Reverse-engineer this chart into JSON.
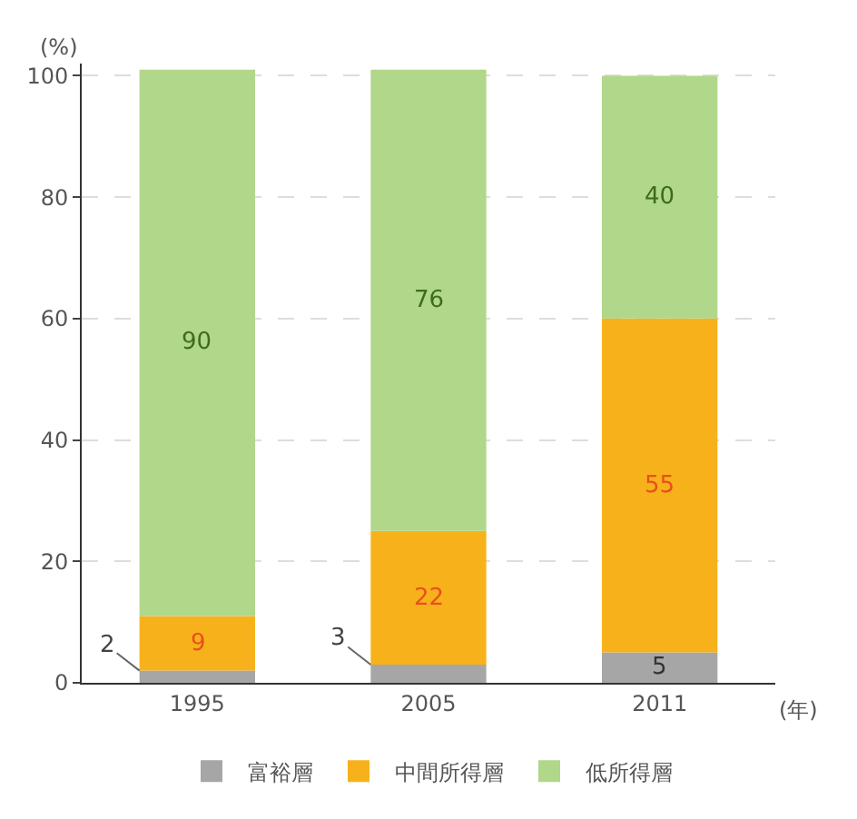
{
  "chart_data": {
    "type": "bar",
    "stacked": true,
    "categories": [
      "1995",
      "2005",
      "2011"
    ],
    "series": [
      {
        "name": "富裕層",
        "color": "#a6a6a6",
        "values": [
          2,
          3,
          5
        ]
      },
      {
        "name": "中間所得層",
        "color": "#f7b21b",
        "values": [
          9,
          22,
          55
        ]
      },
      {
        "name": "低所得層",
        "color": "#b0d78a",
        "values": [
          90,
          76,
          40
        ]
      }
    ],
    "ylabel": "(%)",
    "xlabel": "(年)",
    "ylim": [
      0,
      102
    ],
    "yticks": [
      0,
      20,
      40,
      60,
      80,
      100
    ],
    "grid": "y",
    "legend": "bottom",
    "data_labels": true
  }
}
